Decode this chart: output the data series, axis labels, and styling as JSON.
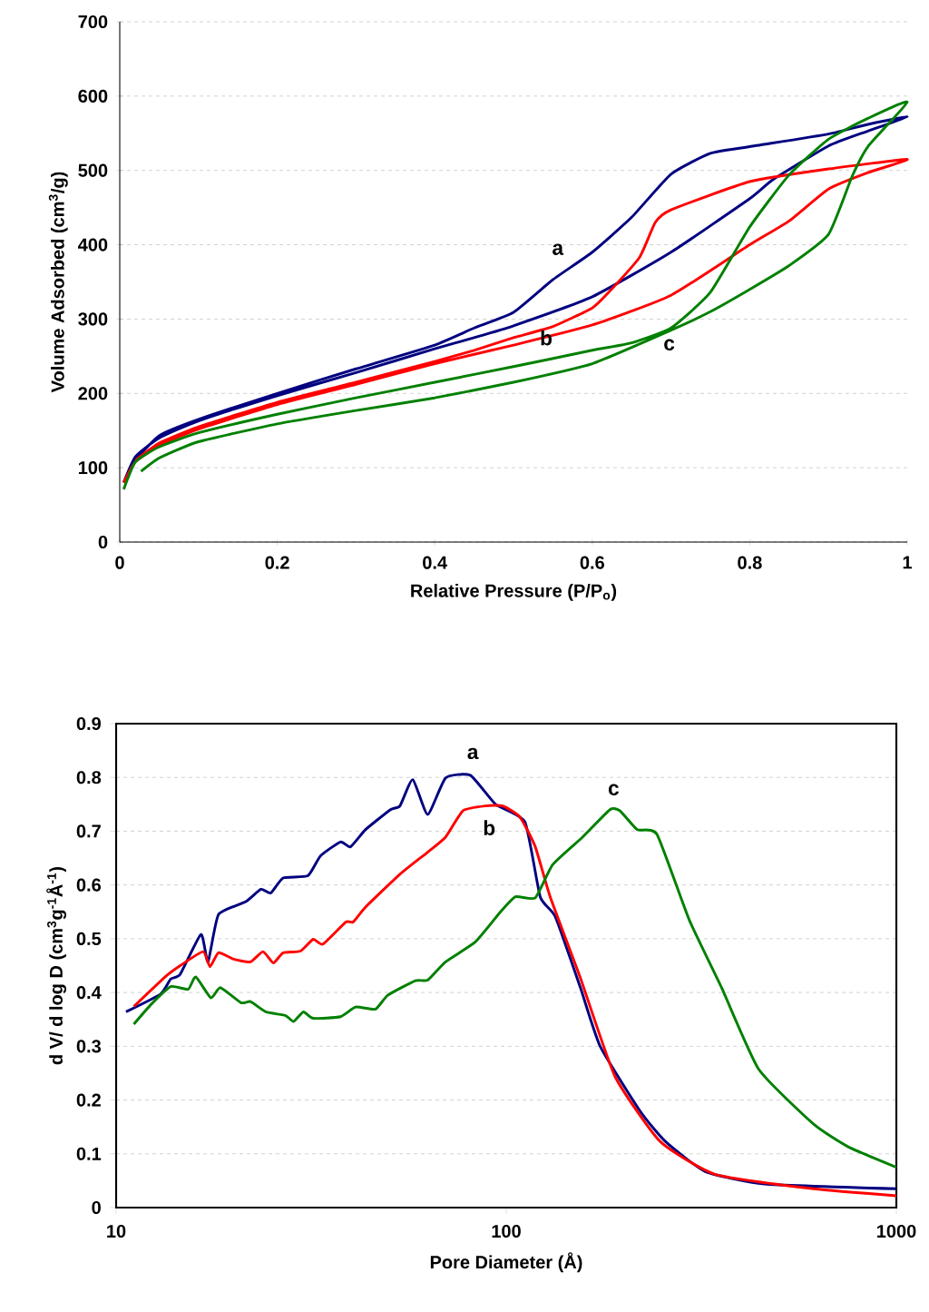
{
  "chart_data": [
    {
      "type": "line",
      "xlabel": "Relative Pressure (P/P$_{o}$)",
      "ylabel": "Volume  Adsorbed (cm$^{3}$/g)",
      "xlim": [
        0,
        1
      ],
      "ylim": [
        0,
        700
      ],
      "xticks": [
        0,
        0.2,
        0.4,
        0.6,
        0.8,
        1
      ],
      "yticks": [
        0,
        100,
        200,
        300,
        400,
        500,
        600,
        700
      ],
      "grid": "y",
      "series": [
        {
          "name": "a",
          "color": "#000080",
          "x": [
            0.005,
            0.02,
            0.05,
            0.1,
            0.2,
            0.3,
            0.4,
            0.45,
            0.5,
            0.6,
            0.7,
            0.8,
            0.83,
            0.9,
            0.95,
            1.0,
            0.95,
            0.9,
            0.8,
            0.75,
            0.7,
            0.65,
            0.6,
            0.55,
            0.5,
            0.45,
            0.4,
            0.3,
            0.2,
            0.1,
            0.05,
            0.015
          ],
          "values": [
            80,
            115,
            140,
            163,
            197,
            228,
            260,
            275,
            291,
            330,
            390,
            462,
            488,
            533,
            553,
            572,
            562,
            549,
            532,
            523,
            495,
            437,
            390,
            353,
            309,
            288,
            265,
            233,
            200,
            165,
            143,
            105
          ]
        },
        {
          "name": "b",
          "color": "#ff0000",
          "x": [
            0.005,
            0.02,
            0.05,
            0.1,
            0.2,
            0.3,
            0.4,
            0.5,
            0.6,
            0.7,
            0.8,
            0.85,
            0.9,
            0.95,
            1.0,
            0.9,
            0.8,
            0.7,
            0.68,
            0.66,
            0.62,
            0.6,
            0.55,
            0.5,
            0.45,
            0.4,
            0.3,
            0.2,
            0.1,
            0.05,
            0.02
          ],
          "values": [
            80,
            108,
            130,
            152,
            185,
            212,
            240,
            265,
            292,
            332,
            400,
            432,
            475,
            497,
            515,
            502,
            485,
            447,
            430,
            383,
            335,
            315,
            290,
            275,
            258,
            243,
            215,
            188,
            155,
            133,
            110
          ]
        },
        {
          "name": "c",
          "color": "#008000",
          "x": [
            0.027,
            0.05,
            0.1,
            0.2,
            0.3,
            0.4,
            0.5,
            0.6,
            0.7,
            0.75,
            0.8,
            0.85,
            0.9,
            0.93,
            0.95,
            1.0,
            0.95,
            0.9,
            0.85,
            0.8,
            0.75,
            0.7,
            0.65,
            0.6,
            0.5,
            0.4,
            0.3,
            0.2,
            0.1,
            0.05,
            0.02,
            0.005
          ],
          "values": [
            95,
            113,
            135,
            159,
            177,
            194,
            215,
            240,
            285,
            310,
            340,
            372,
            414,
            492,
            532,
            592,
            570,
            542,
            494,
            424,
            336,
            288,
            268,
            258,
            236,
            215,
            194,
            172,
            147,
            128,
            108,
            71
          ]
        }
      ]
    },
    {
      "type": "line",
      "xlabel": "Pore Diameter (Å)",
      "ylabel": "d V/ d log D (cm$^{3}$g$^{-1}$Å$^{-1}$)",
      "log": "x",
      "xlim": [
        10,
        1000
      ],
      "ylim": [
        0,
        0.9
      ],
      "xticks": [
        10,
        100,
        1000
      ],
      "yticks": [
        0,
        0.1,
        0.2,
        0.3,
        0.4,
        0.5,
        0.6,
        0.7,
        0.8,
        0.9
      ],
      "grid": "y",
      "series": [
        {
          "name": "a",
          "color": "#000080",
          "x": [
            10.6,
            13.0,
            13.8,
            14.6,
            16.5,
            17.2,
            18.3,
            21.5,
            23.5,
            24.9,
            26.8,
            31.0,
            33.4,
            37.6,
            39.9,
            43.6,
            50.5,
            53.4,
            57.6,
            62.9,
            69.9,
            80.9,
            93.9,
            111.7,
            122.2,
            133.6,
            154.6,
            174.1,
            220.6,
            255.8,
            323.8,
            460,
            1000
          ],
          "values": [
            0.364,
            0.397,
            0.425,
            0.434,
            0.508,
            0.457,
            0.545,
            0.569,
            0.592,
            0.585,
            0.613,
            0.617,
            0.654,
            0.68,
            0.671,
            0.703,
            0.74,
            0.747,
            0.796,
            0.731,
            0.799,
            0.804,
            0.75,
            0.717,
            0.578,
            0.541,
            0.411,
            0.3,
            0.179,
            0.123,
            0.067,
            0.044,
            0.035
          ]
        },
        {
          "name": "b",
          "color": "#ff0000",
          "x": [
            11.1,
            13.4,
            14.6,
            16.7,
            17.4,
            18.3,
            20.0,
            22.1,
            23.8,
            25.3,
            26.8,
            29.7,
            32.0,
            33.9,
            38.8,
            40.5,
            43.6,
            53.4,
            62.9,
            69.9,
            77.5,
            88.5,
            98.0,
            108.5,
            118.7,
            129.6,
            154.6,
            190,
            248,
            343,
            614,
            1000
          ],
          "values": [
            0.374,
            0.43,
            0.45,
            0.476,
            0.448,
            0.474,
            0.462,
            0.457,
            0.476,
            0.455,
            0.474,
            0.477,
            0.499,
            0.49,
            0.531,
            0.531,
            0.559,
            0.62,
            0.661,
            0.689,
            0.738,
            0.747,
            0.747,
            0.726,
            0.671,
            0.578,
            0.429,
            0.244,
            0.123,
            0.062,
            0.035,
            0.022
          ]
        },
        {
          "name": "c",
          "color": "#008000",
          "x": [
            11.1,
            12.3,
            13.8,
            15.3,
            16.0,
            17.5,
            18.5,
            20.9,
            22.1,
            24.2,
            27.2,
            28.5,
            30.2,
            32.0,
            37.6,
            41.1,
            46.2,
            49.7,
            58.5,
            62.9,
            69.9,
            83.3,
            96.7,
            105.6,
            118.7,
            131.6,
            156.9,
            184.5,
            195.7,
            216.7,
            243.5,
            294.5,
            356,
            444,
            614,
            753,
            1000
          ],
          "values": [
            0.341,
            0.378,
            0.411,
            0.406,
            0.429,
            0.39,
            0.409,
            0.381,
            0.383,
            0.364,
            0.357,
            0.346,
            0.364,
            0.352,
            0.355,
            0.373,
            0.369,
            0.395,
            0.422,
            0.423,
            0.457,
            0.494,
            0.55,
            0.578,
            0.576,
            0.638,
            0.689,
            0.74,
            0.738,
            0.703,
            0.694,
            0.535,
            0.41,
            0.257,
            0.155,
            0.113,
            0.075
          ]
        }
      ]
    }
  ]
}
